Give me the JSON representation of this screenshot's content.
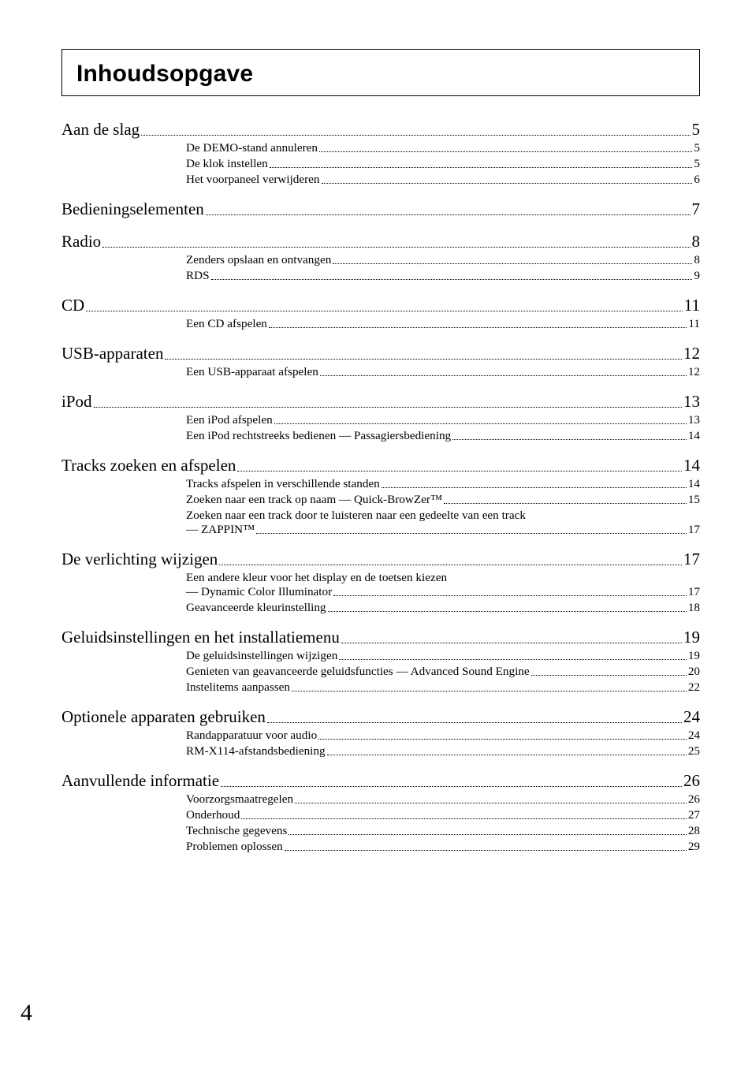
{
  "header": {
    "title": "Inhoudsopgave"
  },
  "page_number": "4",
  "toc": [
    {
      "type": "l1",
      "label": "Aan de slag",
      "page": "5"
    },
    {
      "type": "l2",
      "label": "De DEMO-stand annuleren",
      "page": "5"
    },
    {
      "type": "l2",
      "label": "De klok instellen",
      "page": "5"
    },
    {
      "type": "l2",
      "label": "Het voorpaneel verwijderen",
      "page": "6"
    },
    {
      "type": "l1",
      "label": "Bedieningselementen",
      "page": "7"
    },
    {
      "type": "l1",
      "label": "Radio",
      "page": "8"
    },
    {
      "type": "l2",
      "label": "Zenders opslaan en ontvangen",
      "page": "8"
    },
    {
      "type": "l2",
      "label": "RDS",
      "page": "9"
    },
    {
      "type": "l1",
      "label": "CD",
      "page": "11"
    },
    {
      "type": "l2",
      "label": "Een CD afspelen",
      "page": "11"
    },
    {
      "type": "l1",
      "label": "USB-apparaten",
      "page": "12"
    },
    {
      "type": "l2",
      "label": "Een USB-apparaat afspelen",
      "page": "12"
    },
    {
      "type": "l1",
      "label": "iPod",
      "page": "13"
    },
    {
      "type": "l2",
      "label": "Een iPod afspelen",
      "page": "13"
    },
    {
      "type": "l2",
      "label": "Een iPod rechtstreeks bedienen — Passagiersbediening",
      "page": "14"
    },
    {
      "type": "l1",
      "label": "Tracks zoeken en afspelen",
      "page": "14"
    },
    {
      "type": "l2",
      "label": "Tracks afspelen in verschillende standen",
      "page": "14"
    },
    {
      "type": "l2",
      "label": "Zoeken naar een track op naam — Quick-BrowZer™",
      "page": "15"
    },
    {
      "type": "l2c",
      "label1": "Zoeken naar een track door te luisteren naar een gedeelte van een track",
      "label2": "— ZAPPIN™",
      "page": "17"
    },
    {
      "type": "l1",
      "label": "De verlichting wijzigen",
      "page": "17"
    },
    {
      "type": "l2c",
      "label1": "Een andere kleur voor het display en de toetsen kiezen",
      "label2": "— Dynamic Color Illuminator",
      "page": "17"
    },
    {
      "type": "l2",
      "label": "Geavanceerde kleurinstelling",
      "page": "18"
    },
    {
      "type": "l1",
      "label": "Geluidsinstellingen en het installatiemenu",
      "page": "19"
    },
    {
      "type": "l2",
      "label": "De geluidsinstellingen wijzigen",
      "page": "19"
    },
    {
      "type": "l2",
      "label": "Genieten van geavanceerde geluidsfuncties — Advanced Sound Engine",
      "page": "20"
    },
    {
      "type": "l2",
      "label": "Instelitems aanpassen",
      "page": "22"
    },
    {
      "type": "l1",
      "label": "Optionele apparaten gebruiken",
      "page": "24"
    },
    {
      "type": "l2",
      "label": "Randapparatuur voor audio",
      "page": "24"
    },
    {
      "type": "l2",
      "label": "RM-X114-afstandsbediening",
      "page": "25"
    },
    {
      "type": "l1",
      "label": "Aanvullende informatie",
      "page": "26"
    },
    {
      "type": "l2",
      "label": "Voorzorgsmaatregelen",
      "page": "26"
    },
    {
      "type": "l2",
      "label": "Onderhoud",
      "page": "27"
    },
    {
      "type": "l2",
      "label": "Technische gegevens",
      "page": "28"
    },
    {
      "type": "l2",
      "label": "Problemen oplossen",
      "page": "29"
    }
  ]
}
